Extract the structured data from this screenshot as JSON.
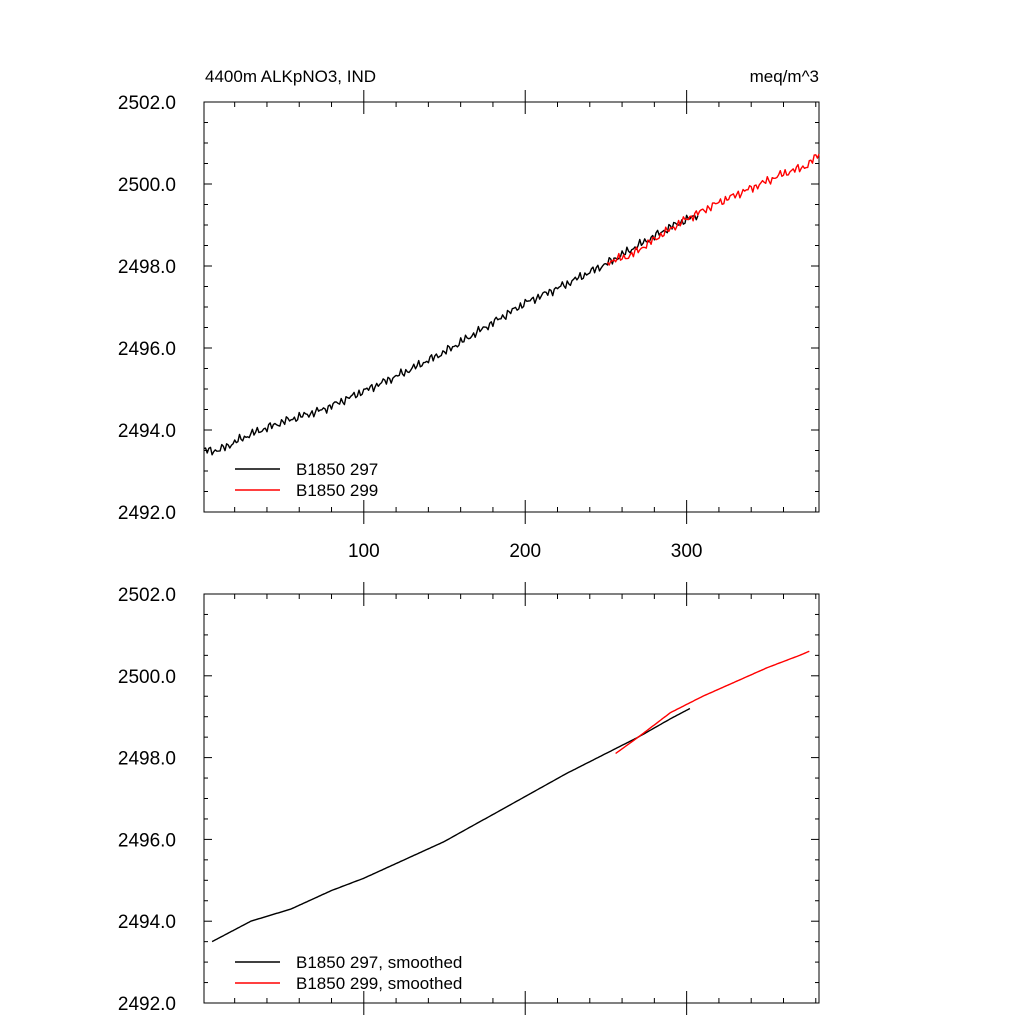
{
  "chart_data": [
    {
      "type": "line",
      "title_left": "4400m ALKpNO3, IND",
      "title_right": "meq/m^3",
      "xlim": [
        1,
        382
      ],
      "ylim": [
        2492.0,
        2502.0
      ],
      "x_ticks": [
        100,
        200,
        300
      ],
      "x_tick_labels": [
        "100",
        "200",
        "300"
      ],
      "y_ticks": [
        2492.0,
        2494.0,
        2496.0,
        2498.0,
        2500.0,
        2502.0
      ],
      "y_tick_labels": [
        "2492.0",
        "2494.0",
        "2496.0",
        "2498.0",
        "2500.0",
        "2502.0"
      ],
      "legend_position": "bottom-left",
      "series": [
        {
          "name": "B1850 297",
          "color": "#000000",
          "noisy": true,
          "x": [
            1,
            10,
            30,
            50,
            75,
            100,
            125,
            150,
            175,
            200,
            225,
            250,
            270,
            290,
            307
          ],
          "y": [
            2493.5,
            2493.5,
            2493.9,
            2494.2,
            2494.5,
            2494.95,
            2495.4,
            2495.9,
            2496.5,
            2497.1,
            2497.55,
            2498.05,
            2498.5,
            2498.95,
            2499.25
          ]
        },
        {
          "name": "B1850 299",
          "color": "#ff0000",
          "noisy": true,
          "x": [
            251,
            265,
            280,
            300,
            320,
            340,
            360,
            375,
            382
          ],
          "y": [
            2498.1,
            2498.25,
            2498.65,
            2499.15,
            2499.55,
            2499.9,
            2500.25,
            2500.45,
            2500.75
          ]
        }
      ]
    },
    {
      "type": "line",
      "xlim": [
        1,
        382
      ],
      "ylim": [
        2492.0,
        2502.0
      ],
      "x_ticks": [
        100,
        200,
        300
      ],
      "y_ticks": [
        2492.0,
        2494.0,
        2496.0,
        2498.0,
        2500.0,
        2502.0
      ],
      "y_tick_labels": [
        "2492.0",
        "2494.0",
        "2496.0",
        "2498.0",
        "2500.0",
        "2502.0"
      ],
      "legend_position": "bottom-left",
      "series": [
        {
          "name": "B1850 297, smoothed",
          "color": "#000000",
          "noisy": false,
          "x": [
            6,
            30,
            55,
            80,
            100,
            125,
            150,
            175,
            200,
            225,
            250,
            270,
            290,
            302
          ],
          "y": [
            2493.5,
            2494.0,
            2494.3,
            2494.75,
            2495.05,
            2495.5,
            2495.95,
            2496.5,
            2497.05,
            2497.6,
            2498.1,
            2498.5,
            2498.95,
            2499.2
          ]
        },
        {
          "name": "B1850 299, smoothed",
          "color": "#ff0000",
          "noisy": false,
          "x": [
            256,
            270,
            290,
            310,
            330,
            350,
            370,
            376
          ],
          "y": [
            2498.1,
            2498.5,
            2499.1,
            2499.5,
            2499.85,
            2500.2,
            2500.5,
            2500.6
          ]
        }
      ]
    }
  ]
}
